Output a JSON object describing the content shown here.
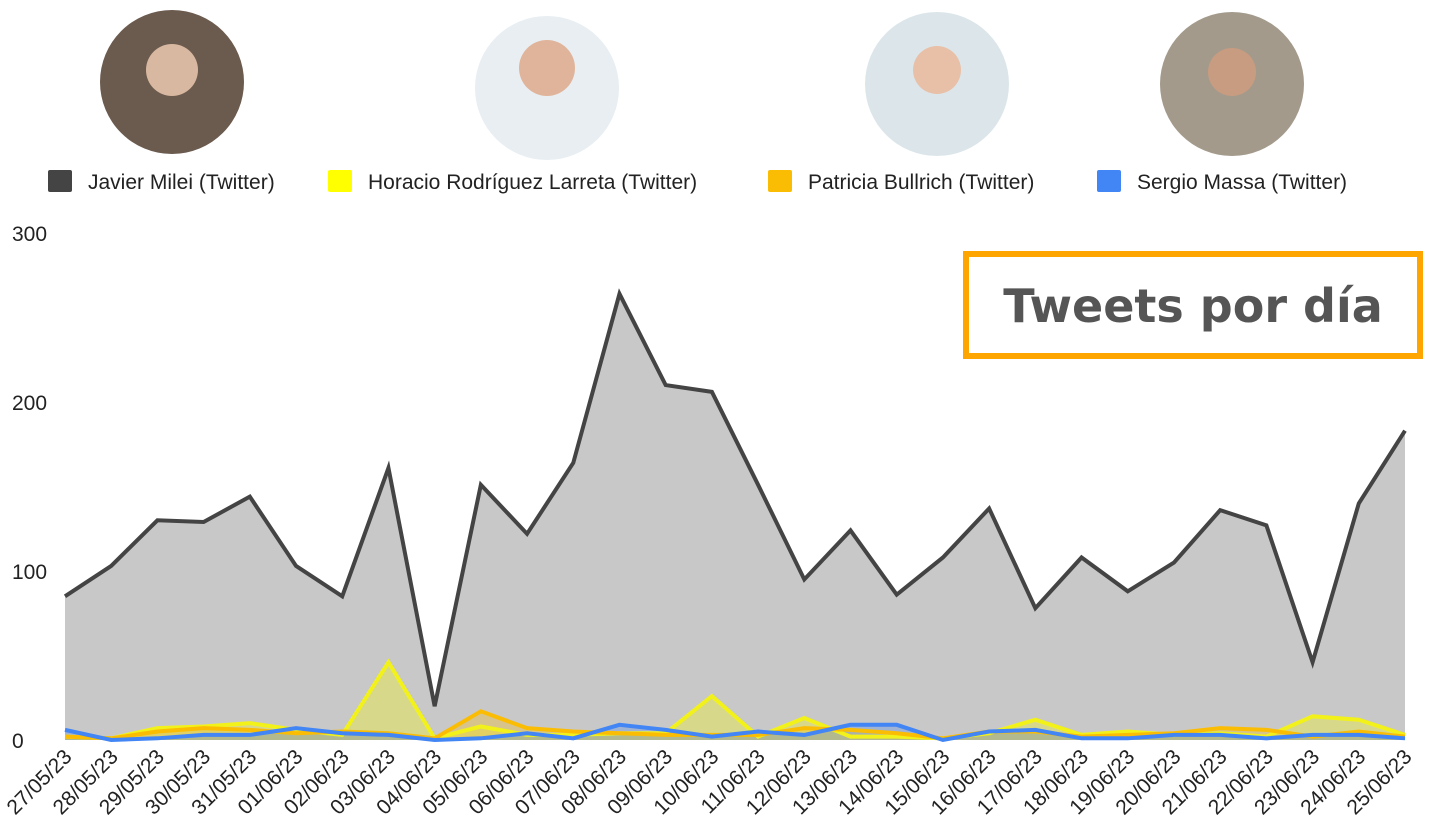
{
  "chart_data": {
    "type": "area",
    "title": "Tweets por día",
    "categories": [
      "27/05/23",
      "28/05/23",
      "29/05/23",
      "30/05/23",
      "31/05/23",
      "01/06/23",
      "02/06/23",
      "03/06/23",
      "04/06/23",
      "05/06/23",
      "06/06/23",
      "07/06/23",
      "08/06/23",
      "09/06/23",
      "10/06/23",
      "11/06/23",
      "12/06/23",
      "13/06/23",
      "14/06/23",
      "15/06/23",
      "16/06/23",
      "17/06/23",
      "18/06/23",
      "19/06/23",
      "20/06/23",
      "21/06/23",
      "22/06/23",
      "23/06/23",
      "24/06/23",
      "25/06/23"
    ],
    "series": [
      {
        "name": "Javier Milei (Twitter)",
        "color": "#444444",
        "values": [
          85,
          103,
          130,
          129,
          144,
          103,
          85,
          161,
          20,
          151,
          122,
          164,
          264,
          210,
          206,
          151,
          95,
          124,
          86,
          108,
          137,
          78,
          108,
          88,
          105,
          136,
          127,
          46,
          140,
          183
        ]
      },
      {
        "name": "Horacio Rodríguez Larreta (Twitter)",
        "color": "#ffff00",
        "values": [
          2,
          1,
          7,
          8,
          10,
          6,
          3,
          46,
          1,
          8,
          3,
          3,
          4,
          4,
          26,
          2,
          13,
          2,
          2,
          1,
          4,
          12,
          3,
          5,
          3,
          4,
          2,
          14,
          12,
          3
        ]
      },
      {
        "name": "Patricia Bullrich (Twitter)",
        "color": "#fbbc04",
        "values": [
          2,
          1,
          5,
          7,
          6,
          4,
          5,
          4,
          1,
          17,
          7,
          5,
          4,
          3,
          3,
          3,
          7,
          6,
          4,
          1,
          5,
          5,
          2,
          3,
          4,
          7,
          6,
          2,
          5,
          2
        ]
      },
      {
        "name": "Sergio Massa (Twitter)",
        "color": "#4285f4",
        "values": [
          6,
          0,
          1,
          3,
          3,
          7,
          4,
          3,
          0,
          1,
          4,
          1,
          9,
          6,
          2,
          5,
          3,
          9,
          9,
          0,
          5,
          6,
          1,
          1,
          3,
          3,
          1,
          3,
          3,
          1
        ]
      }
    ],
    "ylim": [
      0,
      300
    ],
    "yticks": [
      0,
      100,
      200,
      300
    ],
    "grid": false
  }
}
